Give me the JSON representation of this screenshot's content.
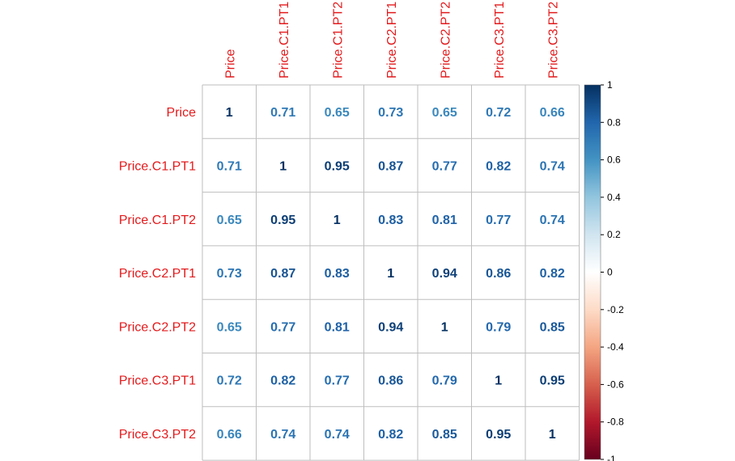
{
  "chart_data": {
    "type": "heatmap",
    "title": "",
    "variables": [
      "Price",
      "Price.C1.PT1",
      "Price.C1.PT2",
      "Price.C2.PT1",
      "Price.C2.PT2",
      "Price.C3.PT1",
      "Price.C3.PT2"
    ],
    "matrix": [
      [
        1,
        0.71,
        0.65,
        0.73,
        0.65,
        0.72,
        0.66
      ],
      [
        0.71,
        1,
        0.95,
        0.87,
        0.77,
        0.82,
        0.74
      ],
      [
        0.65,
        0.95,
        1,
        0.83,
        0.81,
        0.77,
        0.74
      ],
      [
        0.73,
        0.87,
        0.83,
        1,
        0.94,
        0.86,
        0.82
      ],
      [
        0.65,
        0.77,
        0.81,
        0.94,
        1,
        0.79,
        0.85
      ],
      [
        0.72,
        0.82,
        0.77,
        0.86,
        0.79,
        1,
        0.95
      ],
      [
        0.66,
        0.74,
        0.74,
        0.82,
        0.85,
        0.95,
        1
      ]
    ],
    "cell_labels": [
      [
        "1",
        "0.71",
        "0.65",
        "0.73",
        "0.65",
        "0.72",
        "0.66"
      ],
      [
        "0.71",
        "1",
        "0.95",
        "0.87",
        "0.77",
        "0.82",
        "0.74"
      ],
      [
        "0.65",
        "0.95",
        "1",
        "0.83",
        "0.81",
        "0.77",
        "0.74"
      ],
      [
        "0.73",
        "0.87",
        "0.83",
        "1",
        "0.94",
        "0.86",
        "0.82"
      ],
      [
        "0.65",
        "0.77",
        "0.81",
        "0.94",
        "1",
        "0.79",
        "0.85"
      ],
      [
        "0.72",
        "0.82",
        "0.77",
        "0.86",
        "0.79",
        "1",
        "0.95"
      ],
      [
        "0.66",
        "0.74",
        "0.74",
        "0.82",
        "0.85",
        "0.95",
        "1"
      ]
    ],
    "color_scale": {
      "range": [
        -1,
        1
      ],
      "ticks": [
        1,
        0.8,
        0.6,
        0.4,
        0.2,
        0,
        -0.2,
        -0.4,
        -0.6,
        -0.8,
        -1
      ],
      "tick_labels": [
        "1",
        "0.8",
        "0.6",
        "0.4",
        "0.2",
        "0",
        "-0.2",
        "-0.4",
        "-0.6",
        "-0.8",
        "-1"
      ],
      "palette": [
        "#67001F",
        "#B2182B",
        "#D6604D",
        "#F4A582",
        "#FDDBC7",
        "#FFFFFF",
        "#D1E5F0",
        "#92C5DE",
        "#4393C3",
        "#2166AC",
        "#053061"
      ]
    },
    "label_color": "#E31A1C",
    "grid_color": "#BEBEBE",
    "legend_position": "right",
    "grid": true
  }
}
